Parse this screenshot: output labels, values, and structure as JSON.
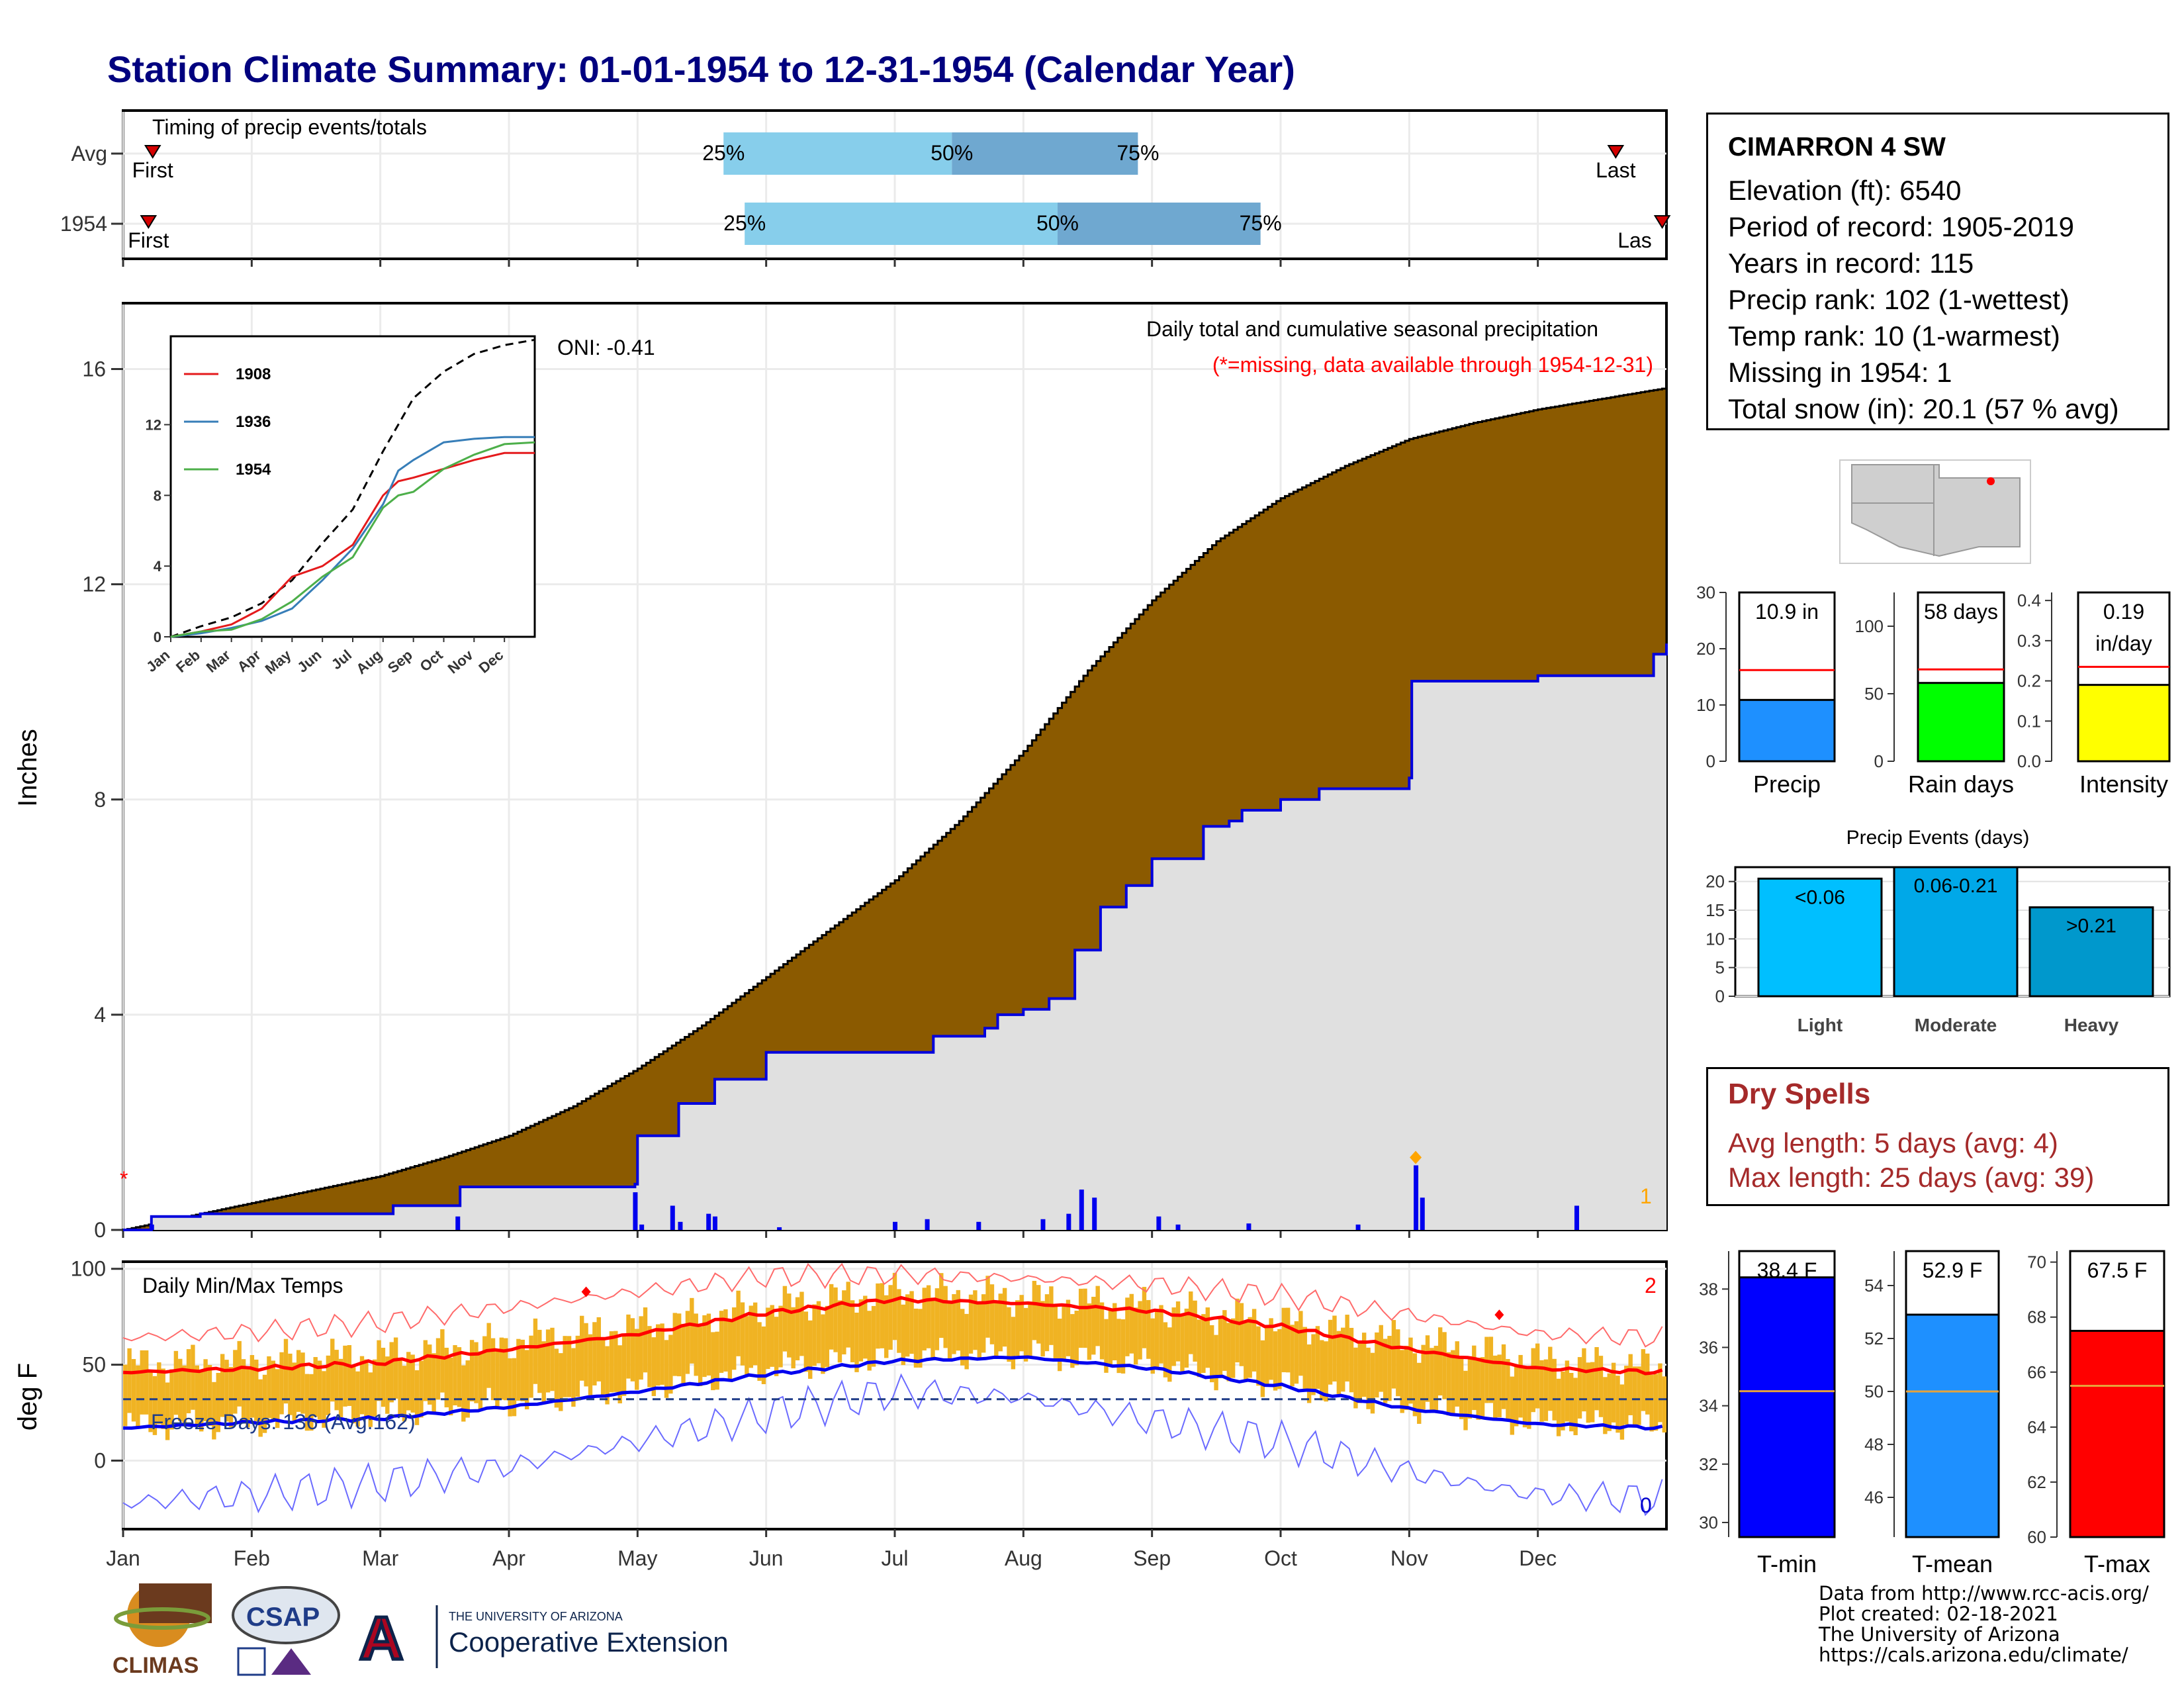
{
  "title": "Station Climate Summary: 01-01-1954 to 12-31-1954 (Calendar Year)",
  "timing_panel": {
    "title": "Timing of precip events/totals",
    "rows": [
      {
        "label": "Avg",
        "first_doy": 8,
        "p25_doy": 143,
        "p50_doy": 197,
        "p75_doy": 241,
        "last_doy": 354,
        "first_label": "First",
        "last_label": "Last",
        "p25_label": "25%",
        "p50_label": "50%",
        "p75_label": "75%"
      },
      {
        "label": "1954",
        "first_doy": 7,
        "p25_doy": 148,
        "p50_doy": 222,
        "p75_doy": 270,
        "last_doy": 365,
        "first_label": "First",
        "last_label": "Las",
        "p25_label": "25%",
        "p50_label": "50%",
        "p75_label": "75%"
      }
    ],
    "colors": {
      "light": "#87ceeb",
      "dark": "#6fa8d0",
      "marker": "#d40000"
    }
  },
  "main_chart": {
    "ylabel": "Inches",
    "yticks": [
      "0",
      "4",
      "8",
      "12",
      "16"
    ],
    "ylim": [
      0,
      17.2
    ],
    "oni_label": "ONI: -0.41",
    "note_title": "Daily total and cumulative seasonal precipitation",
    "note_missing": "(*=missing, data available through 1954-12-31)",
    "missing_marker": "*",
    "corner_count": "1",
    "months": [
      "Jan",
      "Feb",
      "Mar",
      "Apr",
      "May",
      "Jun",
      "Jul",
      "Aug",
      "Sep",
      "Oct",
      "Nov",
      "Dec"
    ],
    "colors": {
      "avg_fill": "#8b5a00",
      "obs_fill": "#e0e0e0",
      "obs_line": "#0000dd",
      "bar": "#0000ee"
    }
  },
  "inset": {
    "series_names": [
      "1908",
      "1936",
      "1954"
    ],
    "series_colors": [
      "#e41a1c",
      "#377eb8",
      "#4daf4a"
    ],
    "yticks": [
      "0",
      "4",
      "8",
      "12"
    ],
    "months": [
      "Jan",
      "Feb",
      "Mar",
      "Apr",
      "May",
      "Jun",
      "Jul",
      "Aug",
      "Sep",
      "Oct",
      "Nov",
      "Dec"
    ]
  },
  "chart_data": [
    {
      "type": "area",
      "title": "Daily total and cumulative seasonal precipitation",
      "ylabel": "Inches",
      "ylim": [
        0,
        17.2
      ],
      "x_unit": "month",
      "series": [
        {
          "name": "Average cumulative",
          "x": [
            0,
            0.5,
            1,
            1.5,
            2,
            2.5,
            3,
            3.5,
            4,
            4.5,
            5,
            5.5,
            6,
            6.5,
            7,
            7.5,
            8,
            8.5,
            9,
            9.5,
            10,
            10.5,
            11,
            11.5,
            12
          ],
          "values": [
            0,
            0.25,
            0.5,
            0.75,
            1.0,
            1.35,
            1.75,
            2.3,
            3.0,
            3.8,
            4.7,
            5.6,
            6.5,
            7.6,
            8.9,
            10.4,
            11.7,
            12.8,
            13.6,
            14.2,
            14.7,
            15.0,
            15.25,
            15.45,
            15.65
          ]
        },
        {
          "name": "1954 cumulative",
          "x": [
            0,
            0.22,
            0.6,
            1.95,
            2.1,
            2.6,
            2.62,
            3.98,
            4.0,
            4.3,
            4.32,
            4.6,
            4.8,
            5.0,
            5.1,
            6.0,
            6.3,
            6.7,
            6.8,
            7.0,
            7.2,
            7.4,
            7.6,
            7.8,
            8.0,
            8.4,
            8.6,
            8.7,
            9.0,
            9.3,
            9.35,
            10.0,
            10.02,
            11.0,
            11.15,
            11.3,
            11.9,
            12.0
          ],
          "values": [
            0,
            0.25,
            0.3,
            0.3,
            0.45,
            0.45,
            0.8,
            0.85,
            1.75,
            1.75,
            2.35,
            2.8,
            2.8,
            3.3,
            3.3,
            3.3,
            3.6,
            3.75,
            4.0,
            4.1,
            4.3,
            5.2,
            6.0,
            6.4,
            6.9,
            7.5,
            7.6,
            7.8,
            8.0,
            8.2,
            8.2,
            8.4,
            10.2,
            10.3,
            10.3,
            10.3,
            10.7,
            10.9
          ]
        },
        {
          "name": "Daily precip",
          "x": [
            0.22,
            2.6,
            3.98,
            4.03,
            4.27,
            4.33,
            4.55,
            4.6,
            5.1,
            6.0,
            6.25,
            6.65,
            7.15,
            7.35,
            7.45,
            7.55,
            8.05,
            8.2,
            8.75,
            9.6,
            10.05,
            10.1,
            11.3
          ],
          "values": [
            0.1,
            0.25,
            0.7,
            0.1,
            0.45,
            0.15,
            0.3,
            0.25,
            0.05,
            0.15,
            0.2,
            0.15,
            0.2,
            0.3,
            0.75,
            0.6,
            0.25,
            0.1,
            0.12,
            0.1,
            1.2,
            0.6,
            0.45
          ]
        }
      ]
    },
    {
      "type": "line",
      "title": "",
      "x_unit": "month",
      "ylim": [
        0,
        17
      ],
      "yticks": [
        0,
        4,
        8,
        12
      ],
      "series": [
        {
          "name": "Average",
          "x": [
            0,
            1,
            2,
            3,
            4,
            5,
            6,
            7,
            8,
            9,
            10,
            11,
            12
          ],
          "values": [
            0,
            0.6,
            1.1,
            1.9,
            3.2,
            5.3,
            7.2,
            10.5,
            13.5,
            15.0,
            16.0,
            16.5,
            16.8
          ]
        },
        {
          "name": "1908",
          "x": [
            0,
            1,
            2,
            3,
            4,
            5,
            6,
            7,
            7.5,
            8,
            9,
            10,
            11,
            12
          ],
          "values": [
            0,
            0.3,
            0.7,
            1.6,
            3.4,
            4.0,
            5.2,
            8.0,
            8.8,
            9.0,
            9.5,
            10.0,
            10.4,
            10.4
          ]
        },
        {
          "name": "1936",
          "x": [
            0,
            1,
            2,
            3,
            4,
            5,
            6,
            7,
            7.5,
            8,
            9,
            10,
            11,
            12
          ],
          "values": [
            0,
            0.2,
            0.5,
            0.9,
            1.6,
            3.2,
            5.0,
            7.5,
            9.4,
            10.0,
            11.0,
            11.2,
            11.3,
            11.3
          ]
        },
        {
          "name": "1954",
          "x": [
            0,
            1,
            2,
            3,
            4,
            5,
            6,
            7,
            7.5,
            8,
            9,
            10,
            11,
            12
          ],
          "values": [
            0,
            0.3,
            0.4,
            1.0,
            2.0,
            3.4,
            4.5,
            7.3,
            8.0,
            8.2,
            9.5,
            10.3,
            10.9,
            11.0
          ]
        }
      ]
    },
    {
      "type": "bar",
      "title": "",
      "categories": [
        "Precip"
      ],
      "values": [
        10.9
      ],
      "reference": 16.2,
      "ylim": [
        0,
        30
      ],
      "yticks": [
        0,
        10,
        20,
        30
      ],
      "value_label": "10.9 in",
      "color": "#1e90ff"
    },
    {
      "type": "bar",
      "title": "",
      "categories": [
        "Rain days"
      ],
      "values": [
        58
      ],
      "reference": 68,
      "ylim": [
        0,
        125
      ],
      "yticks": [
        0,
        50,
        100
      ],
      "value_label": "58 days",
      "color": "#00ff00"
    },
    {
      "type": "bar",
      "title": "",
      "categories": [
        "Intensity"
      ],
      "values": [
        0.19
      ],
      "reference": 0.235,
      "ylim": [
        0,
        0.42
      ],
      "yticks": [
        0.0,
        0.1,
        0.2,
        0.3,
        0.4
      ],
      "value_label": "0.19",
      "value_unit": "in/day",
      "color": "#ffff00"
    },
    {
      "type": "bar",
      "title": "Precip Events (days)",
      "categories": [
        "Light",
        "Moderate",
        "Heavy"
      ],
      "values": [
        20.5,
        22.5,
        15.5
      ],
      "value_labels": [
        "<0.06",
        "0.06-0.21",
        ">0.21"
      ],
      "ylim": [
        0,
        22.5
      ],
      "yticks": [
        0,
        5,
        10,
        15,
        20
      ],
      "colors": [
        "#00bfff",
        "#00a8e8",
        "#0098cc"
      ]
    },
    {
      "type": "line",
      "title": "Daily Min/Max Temps",
      "ylabel": "deg F",
      "ylim": [
        -35,
        103
      ],
      "yticks": [
        0,
        50,
        100
      ],
      "x_unit": "month",
      "freeze_line": 32,
      "freeze_label": "Freeze Days: 136 (Avg:162)",
      "top_right_count": "2",
      "bottom_right_count": "0",
      "series": [
        {
          "name": "Avg max",
          "x": [
            0,
            1,
            2,
            3,
            4,
            5,
            6,
            7,
            8,
            9,
            10,
            11,
            12
          ],
          "values": [
            46,
            48,
            51,
            58,
            66,
            77,
            84,
            82,
            78,
            70,
            58,
            48,
            46
          ]
        },
        {
          "name": "Avg min",
          "x": [
            0,
            1,
            2,
            3,
            4,
            5,
            6,
            7,
            8,
            9,
            10,
            11,
            12
          ],
          "values": [
            17,
            20,
            22,
            28,
            36,
            45,
            52,
            54,
            48,
            39,
            27,
            19,
            17
          ]
        },
        {
          "name": "Record max",
          "x": [
            0,
            1,
            2,
            3,
            4,
            5,
            6,
            7,
            8,
            9,
            10,
            11,
            12
          ],
          "values": [
            64,
            67,
            72,
            80,
            88,
            96,
            97,
            95,
            92,
            86,
            76,
            66,
            64
          ]
        },
        {
          "name": "Record min",
          "x": [
            0,
            1,
            2,
            3,
            4,
            5,
            6,
            7,
            8,
            9,
            10,
            11,
            12
          ],
          "values": [
            -22,
            -18,
            -12,
            -3,
            10,
            24,
            36,
            33,
            21,
            10,
            -6,
            -18,
            -20
          ]
        },
        {
          "name": "Observed max",
          "x": [
            0,
            1,
            2,
            3,
            4,
            5,
            6,
            7,
            8,
            9,
            10,
            11,
            12
          ],
          "values": [
            50,
            52,
            55,
            62,
            70,
            80,
            88,
            85,
            80,
            72,
            62,
            52,
            48
          ]
        },
        {
          "name": "Observed min",
          "x": [
            0,
            1,
            2,
            3,
            4,
            5,
            6,
            7,
            8,
            9,
            10,
            11,
            12
          ],
          "values": [
            18,
            20,
            25,
            30,
            38,
            48,
            55,
            56,
            50,
            40,
            28,
            20,
            18
          ]
        }
      ]
    },
    {
      "type": "bar",
      "title": "",
      "categories": [
        "T-min"
      ],
      "values": [
        38.4
      ],
      "reference": 34.5,
      "ylim": [
        29.5,
        39.3
      ],
      "yticks": [
        30,
        32,
        34,
        36,
        38
      ],
      "value_label": "38.4 F",
      "color": "#0000ff"
    },
    {
      "type": "bar",
      "title": "",
      "categories": [
        "T-mean"
      ],
      "values": [
        52.9
      ],
      "reference": 50.0,
      "ylim": [
        44.5,
        55.3
      ],
      "yticks": [
        46,
        48,
        50,
        52,
        54
      ],
      "value_label": "52.9 F",
      "color": "#1e90ff"
    },
    {
      "type": "bar",
      "title": "",
      "categories": [
        "T-max"
      ],
      "values": [
        67.5
      ],
      "reference": 65.5,
      "ylim": [
        60,
        70.4
      ],
      "yticks": [
        60,
        62,
        64,
        66,
        68,
        70
      ],
      "value_label": "67.5 F",
      "color": "#ff0000"
    }
  ],
  "station": {
    "name": "CIMARRON 4 SW",
    "lines": [
      "Elevation (ft): 6540",
      "Period of record: 1905-2019",
      "Years in record: 115",
      "Precip rank: 102 (1-wettest)",
      "Temp rank: 10 (1-warmest)",
      "Missing in 1954: 1",
      "Total snow (in): 20.1 (57 % avg)"
    ]
  },
  "dry_spells": {
    "title": "Dry Spells",
    "avg_line": "Avg length: 5 days (avg: 4)",
    "max_line": "Max length: 25 days (avg: 39)"
  },
  "footer": {
    "credits": [
      "Data from http://www.rcc-acis.org/",
      "Plot created: 02-18-2021",
      "The University of Arizona",
      "https://cals.arizona.edu/climate/"
    ],
    "logo_climas": "CLIMAS",
    "logo_csap": "CSAP",
    "ua_small": "THE UNIVERSITY OF ARIZONA",
    "ua_big": "Cooperative Extension",
    "ua_mark": "A"
  }
}
